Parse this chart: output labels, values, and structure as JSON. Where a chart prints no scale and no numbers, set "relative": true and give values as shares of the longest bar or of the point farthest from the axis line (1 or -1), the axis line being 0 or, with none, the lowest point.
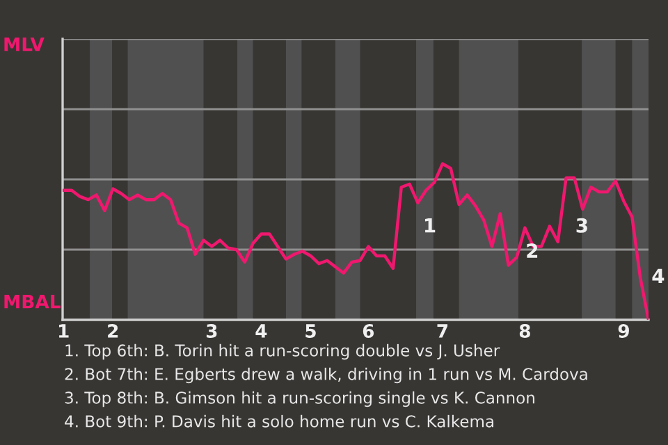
{
  "chart_data": {
    "type": "line",
    "relative": true,
    "categories": [
      "1",
      null,
      null,
      null,
      null,
      null,
      "2",
      null,
      null,
      null,
      null,
      null,
      null,
      null,
      null,
      null,
      null,
      null,
      "3",
      null,
      null,
      null,
      null,
      null,
      "4",
      null,
      null,
      null,
      null,
      null,
      "5",
      null,
      null,
      null,
      null,
      null,
      null,
      "6",
      null,
      null,
      null,
      null,
      null,
      null,
      null,
      null,
      "7",
      null,
      null,
      null,
      null,
      null,
      null,
      null,
      null,
      null,
      "8",
      null,
      null,
      null,
      null,
      null,
      null,
      null,
      null,
      null,
      null,
      null,
      "9",
      null,
      null,
      null
    ],
    "series": [
      {
        "color": "#f0186e",
        "values": [
          0.83,
          0.83,
          0.79,
          0.77,
          0.8,
          0.7,
          0.84,
          0.81,
          0.77,
          0.8,
          0.77,
          0.77,
          0.81,
          0.77,
          0.62,
          0.59,
          0.42,
          0.51,
          0.47,
          0.51,
          0.46,
          0.45,
          0.37,
          0.49,
          0.55,
          0.55,
          0.47,
          0.39,
          0.42,
          0.44,
          0.41,
          0.36,
          0.38,
          0.34,
          0.3,
          0.37,
          0.38,
          0.47,
          0.41,
          0.41,
          0.33,
          0.85,
          0.87,
          0.75,
          0.83,
          0.88,
          1.0,
          0.97,
          0.74,
          0.8,
          0.73,
          0.64,
          0.47,
          0.68,
          0.35,
          0.4,
          0.59,
          0.47,
          0.47,
          0.6,
          0.5,
          0.91,
          0.91,
          0.71,
          0.85,
          0.82,
          0.82,
          0.89,
          0.76,
          0.66,
          0.27,
          0.0
        ],
        "line_style": "solid"
      }
    ],
    "ref_lines": [
      {
        "axis": "y",
        "value": 0.45,
        "color": "#909090"
      },
      {
        "axis": "y",
        "value": 0.9,
        "color": "#909090"
      },
      {
        "axis": "y",
        "value": 1.35,
        "color": "#909090"
      },
      {
        "axis": "y",
        "value": 1.8,
        "color": "#909090"
      }
    ],
    "annotations": [
      "MLV",
      "MBAL",
      "1",
      "2",
      "3",
      "4",
      "1. Top 6th: B. Torin hit a run-scoring double vs J. Usher",
      "2. Bot 7th: E. Egberts drew a walk, driving in 1 run vs M. Cardova",
      "3. Top 8th: B. Gimson hit a run-scoring single vs K. Cannon",
      "4. Bot 9th: P. Davis hit a solo home run vs C. Kalkema"
    ]
  }
}
